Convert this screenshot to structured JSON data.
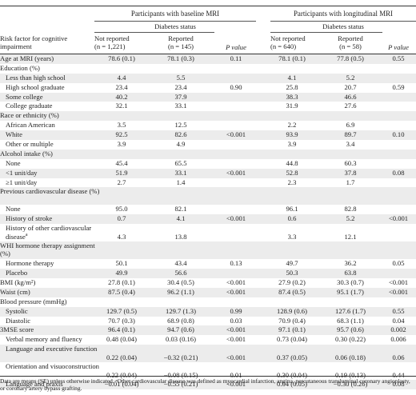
{
  "header": {
    "group_left": "Participants with baseline MRI",
    "group_right": "Participants with longitudinal MRI",
    "diabetes_status": "Diabetes status",
    "risk_factor_head": "Risk factor for cognitive impairment",
    "not_reported": "Not reported",
    "reported": "Reported",
    "n_left_not": "(n = 1,221)",
    "n_left_rep": "(n = 145)",
    "n_right_not": "(n = 640)",
    "n_right_rep": "(n = 58)",
    "p_value": "P value"
  },
  "rows": [
    {
      "label": "Age at MRI (years)",
      "shade": true,
      "v": [
        "78.6 (0.1)",
        "78.1 (0.3)",
        "0.11",
        "78.1 (0.1)",
        "77.8 (0.5)",
        "0.55"
      ]
    },
    {
      "label": "Education (%)",
      "shade": false,
      "v": [
        "",
        "",
        "",
        "",
        "",
        ""
      ]
    },
    {
      "label": "Less than high school",
      "indent": true,
      "shade": true,
      "v": [
        "4.4",
        "5.5",
        "",
        "4.1",
        "5.2",
        ""
      ]
    },
    {
      "label": "High school graduate",
      "indent": true,
      "shade": false,
      "v": [
        "23.4",
        "23.4",
        "0.90",
        "25.8",
        "20.7",
        "0.59"
      ]
    },
    {
      "label": "Some college",
      "indent": true,
      "shade": true,
      "v": [
        "40.2",
        "37.9",
        "",
        "38.3",
        "46.6",
        ""
      ]
    },
    {
      "label": "College graduate",
      "indent": true,
      "shade": false,
      "v": [
        "32.1",
        "33.1",
        "",
        "31.9",
        "27.6",
        ""
      ]
    },
    {
      "label": "Race or ethnicity (%)",
      "shade": true,
      "v": [
        "",
        "",
        "",
        "",
        "",
        ""
      ]
    },
    {
      "label": "African American",
      "indent": true,
      "shade": false,
      "v": [
        "3.5",
        "12.5",
        "",
        "2.2",
        "6.9",
        ""
      ]
    },
    {
      "label": "White",
      "indent": true,
      "shade": true,
      "v": [
        "92.5",
        "82.6",
        "<0.001",
        "93.9",
        "89.7",
        "0.10"
      ]
    },
    {
      "label": "Other or multiple",
      "indent": true,
      "shade": false,
      "v": [
        "3.9",
        "4.9",
        "",
        "3.9",
        "3.4",
        ""
      ]
    },
    {
      "label": "Alcohol intake (%)",
      "shade": true,
      "v": [
        "",
        "",
        "",
        "",
        "",
        ""
      ]
    },
    {
      "label": "None",
      "indent": true,
      "shade": false,
      "v": [
        "45.4",
        "65.5",
        "",
        "44.8",
        "60.3",
        ""
      ]
    },
    {
      "label": "<1 unit/day",
      "indent": true,
      "shade": true,
      "v": [
        "51.9",
        "33.1",
        "<0.001",
        "52.8",
        "37.8",
        "0.08"
      ]
    },
    {
      "label": "≥1 unit/day",
      "indent": true,
      "shade": false,
      "v": [
        "2.7",
        "1.4",
        "",
        "2.3",
        "1.7",
        ""
      ]
    },
    {
      "label": "Previous cardiovascular disease (%)",
      "shade": true,
      "tall": true,
      "v": [
        "",
        "",
        "",
        "",
        "",
        ""
      ]
    },
    {
      "label": "None",
      "indent": true,
      "shade": false,
      "v": [
        "95.0",
        "82.1",
        "",
        "96.1",
        "82.8",
        ""
      ]
    },
    {
      "label": "History of stroke",
      "indent": true,
      "shade": true,
      "v": [
        "0.7",
        "4.1",
        "<0.001",
        "0.6",
        "5.2",
        "<0.001"
      ]
    },
    {
      "label": "History of other cardiovascular disease",
      "sup": "a",
      "indent": true,
      "shade": false,
      "tall": true,
      "v": [
        "4.3",
        "13.8",
        "",
        "3.3",
        "12.1",
        ""
      ]
    },
    {
      "label": "WHI hormone therapy assignment (%)",
      "shade": true,
      "tall": true,
      "v": [
        "",
        "",
        "",
        "",
        "",
        ""
      ]
    },
    {
      "label": "Hormone therapy",
      "indent": true,
      "shade": false,
      "v": [
        "50.1",
        "43.4",
        "0.13",
        "49.7",
        "36.2",
        "0.05"
      ]
    },
    {
      "label": "Placebo",
      "indent": true,
      "shade": true,
      "v": [
        "49.9",
        "56.6",
        "",
        "50.3",
        "63.8",
        ""
      ]
    },
    {
      "label": "BMI (kg/m²)",
      "shade": false,
      "v": [
        "27.8 (0.1)",
        "30.4 (0.5)",
        "<0.001",
        "27.9 (0.2)",
        "30.3 (0.7)",
        "<0.001"
      ]
    },
    {
      "label": "Waist (cm)",
      "shade": true,
      "v": [
        "87.5 (0.4)",
        "96.2 (1.1)",
        "<0.001",
        "87.4 (0.5)",
        "95.1 (1.7)",
        "<0.001"
      ]
    },
    {
      "label": "Blood pressure (mmHg)",
      "shade": false,
      "v": [
        "",
        "",
        "",
        "",
        "",
        ""
      ]
    },
    {
      "label": "Systolic",
      "indent": true,
      "shade": true,
      "v": [
        "129.7 (0.5)",
        "129.7 (1.3)",
        "0.99",
        "128.9 (0.6)",
        "127.6 (1.7)",
        "0.55"
      ]
    },
    {
      "label": "Diastolic",
      "indent": true,
      "shade": false,
      "v": [
        "70.7 (0.3)",
        "68.9 (0.8)",
        "0.03",
        "70.9 (0.4)",
        "68.3 (1.1)",
        "0.04"
      ]
    },
    {
      "label": "3MSE score",
      "shade": true,
      "v": [
        "96.4 (0.1)",
        "94.7 (0.6)",
        "<0.001",
        "97.1 (0.1)",
        "95.7 (0.6)",
        "0.002"
      ]
    },
    {
      "label": "Verbal memory and fluency",
      "indent": true,
      "shade": false,
      "v": [
        "0.48 (0.04)",
        "0.03 (0.16)",
        "<0.001",
        "0.73 (0.04)",
        "0.30 (0.22)",
        "0.006"
      ]
    },
    {
      "label": "Language and executive function",
      "indent": true,
      "shade": true,
      "tall": true,
      "v": [
        "0.22 (0.04)",
        "−0.32 (0.21)",
        "<0.001",
        "0.37 (0.05)",
        "0.06 (0.18)",
        "0.06"
      ]
    },
    {
      "label": "Orientation and visuoconstruction",
      "indent": true,
      "shade": false,
      "tall": true,
      "v": [
        "0.22 (0.04)",
        "−0.08 (0.15)",
        "0.01",
        "0.30 (0.04)",
        "0.19 (0.13)",
        "0.44"
      ]
    },
    {
      "label": "Language and praxis",
      "indent": true,
      "shade": true,
      "v": [
        "−0.01 (0.04)",
        "−0.55 (0.21)",
        "<0.001",
        "0.04 (0.05)",
        "−0.30 (0.26)",
        "0.08"
      ]
    }
  ],
  "footnote": "Data are means (SE) unless otherwise indicated. ᵃOther cardiovascular disease was defined as myocardial infarction, angina, percutaneous transluminal coronary angioplasty, or coronary artery bypass grafting."
}
